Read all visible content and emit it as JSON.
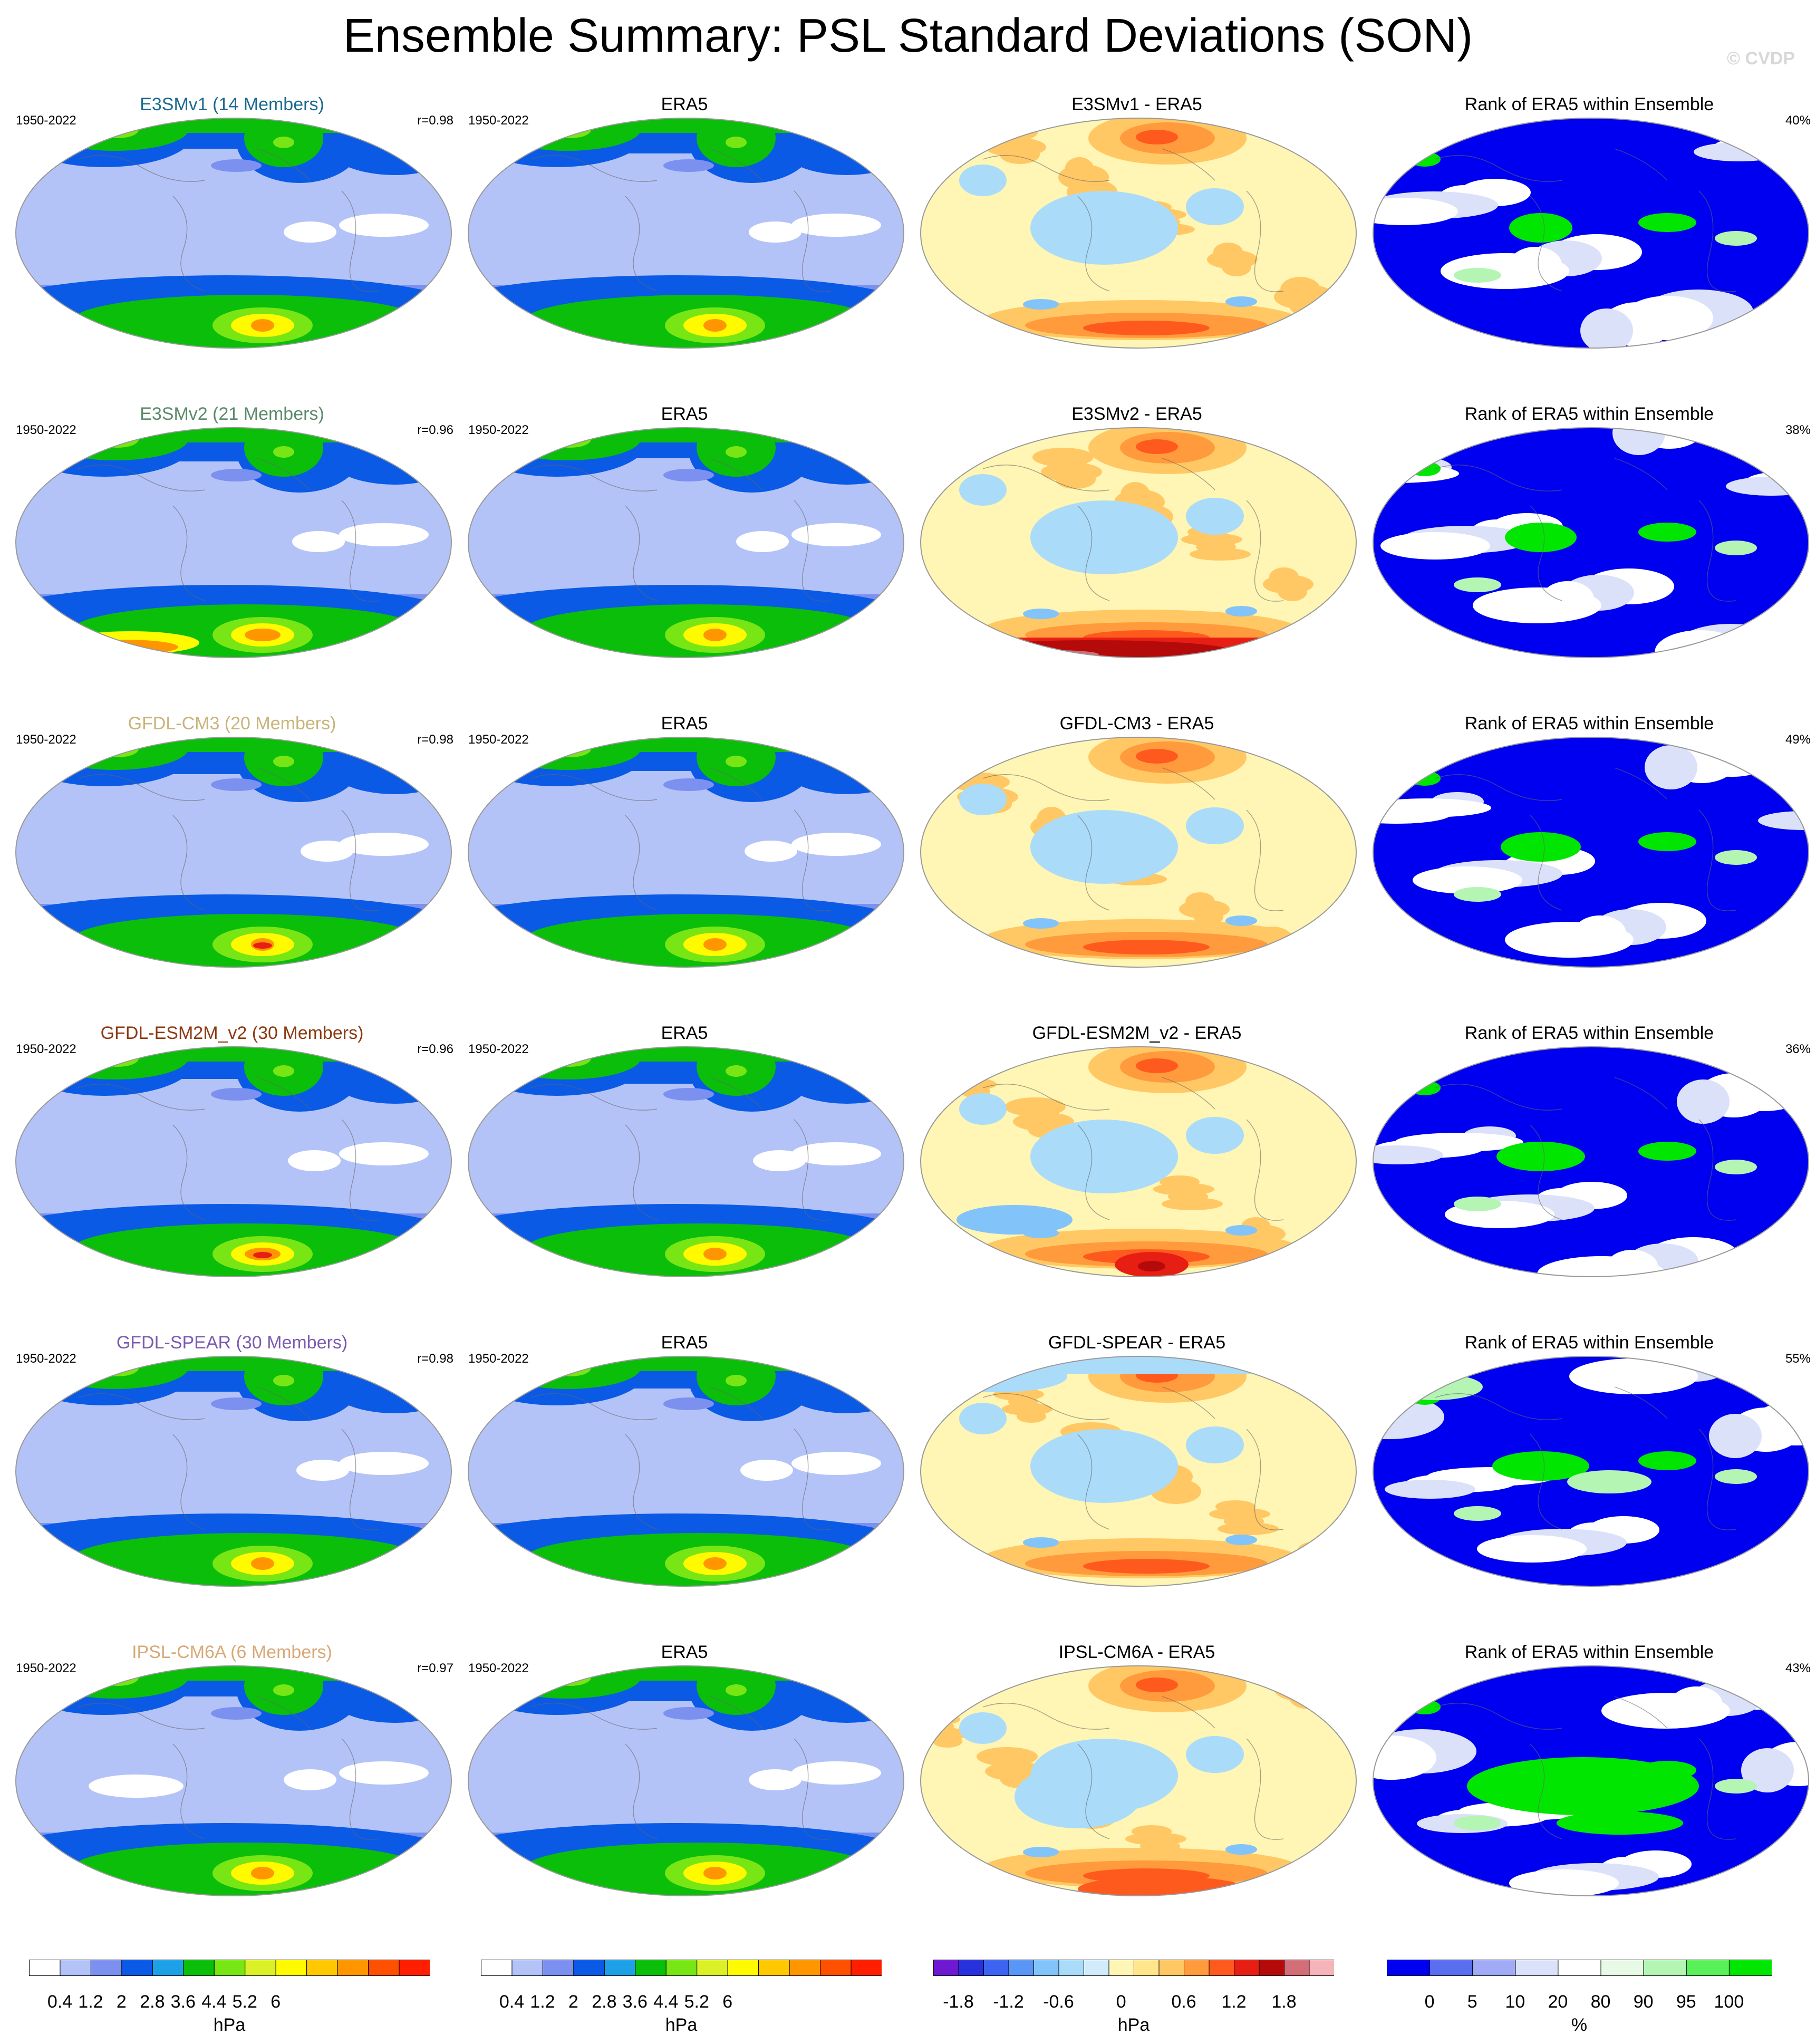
{
  "figure": {
    "title": "Ensemble Summary: PSL Standard Deviations (SON)",
    "watermark": "© CVDP"
  },
  "rows": [
    {
      "model_title": "E3SMv1 (14 Members)",
      "model_color": "#1c6a8f",
      "period": "1950-2022",
      "corr": "r=0.98",
      "era5_title": "ERA5",
      "era5_period": "1950-2022",
      "diff_title": "E3SMv1 - ERA5",
      "rank_title": "Rank of ERA5 within Ensemble",
      "rank_pct": "40%"
    },
    {
      "model_title": "E3SMv2 (21 Members)",
      "model_color": "#5a8a6a",
      "period": "1950-2022",
      "corr": "r=0.96",
      "era5_title": "ERA5",
      "era5_period": "1950-2022",
      "diff_title": "E3SMv2 - ERA5",
      "rank_title": "Rank of ERA5 within Ensemble",
      "rank_pct": "38%"
    },
    {
      "model_title": "GFDL-CM3 (20 Members)",
      "model_color": "#c8b47a",
      "period": "1950-2022",
      "corr": "r=0.98",
      "era5_title": "ERA5",
      "era5_period": "1950-2022",
      "diff_title": "GFDL-CM3 - ERA5",
      "rank_title": "Rank of ERA5 within Ensemble",
      "rank_pct": "49%"
    },
    {
      "model_title": "GFDL-ESM2M_v2 (30 Members)",
      "model_color": "#8b3a12",
      "period": "1950-2022",
      "corr": "r=0.96",
      "era5_title": "ERA5",
      "era5_period": "1950-2022",
      "diff_title": "GFDL-ESM2M_v2 - ERA5",
      "rank_title": "Rank of ERA5 within Ensemble",
      "rank_pct": "36%"
    },
    {
      "model_title": "GFDL-SPEAR (30 Members)",
      "model_color": "#7b5bb0",
      "period": "1950-2022",
      "corr": "r=0.98",
      "era5_title": "ERA5",
      "era5_period": "1950-2022",
      "diff_title": "GFDL-SPEAR - ERA5",
      "rank_title": "Rank of ERA5 within Ensemble",
      "rank_pct": "55%"
    },
    {
      "model_title": "IPSL-CM6A (6 Members)",
      "model_color": "#d8a878",
      "period": "1950-2022",
      "corr": "r=0.97",
      "era5_title": "ERA5",
      "era5_period": "1950-2022",
      "diff_title": "IPSL-CM6A - ERA5",
      "rank_title": "Rank of ERA5 within Ensemble",
      "rank_pct": "43%"
    }
  ],
  "colorbars": {
    "sd": {
      "colors": [
        "#ffffff",
        "#b4c3f7",
        "#7c90f0",
        "#0a5ae6",
        "#1ea0e6",
        "#0abe0a",
        "#78e614",
        "#dcf028",
        "#fffa00",
        "#ffc800",
        "#ff9600",
        "#ff5000",
        "#ff1e00"
      ],
      "ticks": [
        "0.4",
        "1.2",
        "2",
        "2.8",
        "3.6",
        "4.4",
        "5.2",
        "6"
      ],
      "unit": "hPa"
    },
    "diff": {
      "colors": [
        "#6e18d2",
        "#2832dc",
        "#3c64f0",
        "#5a96f5",
        "#82c3fa",
        "#aadcfa",
        "#d2ebfa",
        "#fff5b4",
        "#ffe68c",
        "#ffc864",
        "#ff9b3c",
        "#ff5a1e",
        "#e61e14",
        "#b40a0a",
        "#d26e78",
        "#f5b4b9"
      ],
      "ticks": [
        "-1.8",
        "-1.2",
        "-0.6",
        "0",
        "0.6",
        "1.2",
        "1.8"
      ],
      "unit": "hPa"
    },
    "rank": {
      "colors": [
        "#0000f0",
        "#5a6ef0",
        "#a0aaf5",
        "#dce1fa",
        "#ffffff",
        "#e6fae6",
        "#b4f5b4",
        "#5af05a",
        "#00e600"
      ],
      "ticks": [
        "0",
        "5",
        "10",
        "20",
        "80",
        "90",
        "95",
        "100"
      ],
      "unit": "%"
    }
  },
  "chart_data": [
    {
      "type": "heatmap",
      "title": "E3SMv1 (14 Members)",
      "quantity": "PSL standard deviation",
      "unit": "hPa",
      "colorbar_ticks": [
        0.4,
        1.2,
        2,
        2.8,
        3.6,
        4.4,
        5.2,
        6
      ],
      "pattern_correlation": 0.98
    },
    {
      "type": "heatmap",
      "title": "E3SMv2 (21 Members)",
      "quantity": "PSL standard deviation",
      "unit": "hPa",
      "colorbar_ticks": [
        0.4,
        1.2,
        2,
        2.8,
        3.6,
        4.4,
        5.2,
        6
      ],
      "pattern_correlation": 0.96
    },
    {
      "type": "heatmap",
      "title": "GFDL-CM3 (20 Members)",
      "quantity": "PSL standard deviation",
      "unit": "hPa",
      "colorbar_ticks": [
        0.4,
        1.2,
        2,
        2.8,
        3.6,
        4.4,
        5.2,
        6
      ],
      "pattern_correlation": 0.98
    },
    {
      "type": "heatmap",
      "title": "GFDL-ESM2M_v2 (30 Members)",
      "quantity": "PSL standard deviation",
      "unit": "hPa",
      "colorbar_ticks": [
        0.4,
        1.2,
        2,
        2.8,
        3.6,
        4.4,
        5.2,
        6
      ],
      "pattern_correlation": 0.96
    },
    {
      "type": "heatmap",
      "title": "GFDL-SPEAR (30 Members)",
      "quantity": "PSL standard deviation",
      "unit": "hPa",
      "colorbar_ticks": [
        0.4,
        1.2,
        2,
        2.8,
        3.6,
        4.4,
        5.2,
        6
      ],
      "pattern_correlation": 0.98
    },
    {
      "type": "heatmap",
      "title": "IPSL-CM6A (6 Members)",
      "quantity": "PSL standard deviation",
      "unit": "hPa",
      "colorbar_ticks": [
        0.4,
        1.2,
        2,
        2.8,
        3.6,
        4.4,
        5.2,
        6
      ],
      "pattern_correlation": 0.97
    },
    {
      "type": "heatmap",
      "title": "Rank of ERA5 within Ensemble",
      "unit": "%",
      "colorbar_ticks": [
        0,
        5,
        10,
        20,
        80,
        90,
        95,
        100
      ],
      "rank_values_percent": [
        40,
        38,
        49,
        36,
        55,
        43
      ]
    }
  ]
}
